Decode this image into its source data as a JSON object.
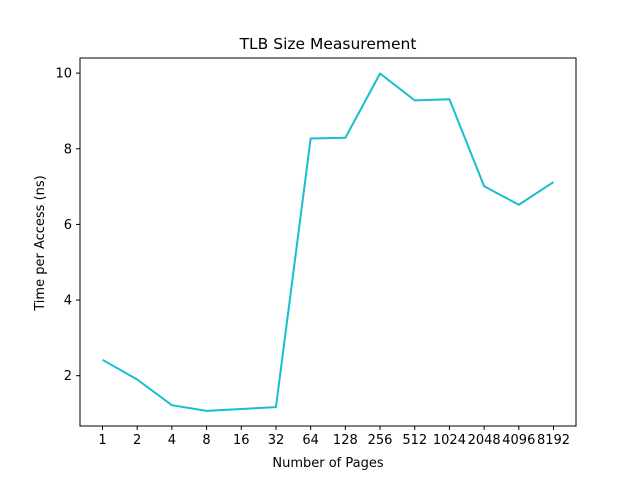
{
  "chart_data": {
    "type": "line",
    "title": "TLB Size Measurement",
    "xlabel": "Number of Pages",
    "ylabel": "Time per Access (ns)",
    "categories": [
      "1",
      "2",
      "4",
      "8",
      "16",
      "32",
      "64",
      "128",
      "256",
      "512",
      "1024",
      "2048",
      "4096",
      "8192"
    ],
    "series": [
      {
        "values": [
          2.42,
          1.9,
          1.22,
          1.07,
          1.12,
          1.17,
          8.27,
          8.29,
          9.99,
          9.28,
          9.31,
          7.01,
          6.52,
          7.12
        ],
        "color": "#17becf"
      }
    ],
    "ylim": [
      0.67,
      10.4
    ],
    "yticks": [
      2,
      4,
      6,
      8,
      10
    ],
    "grid": false,
    "legend": "none"
  }
}
